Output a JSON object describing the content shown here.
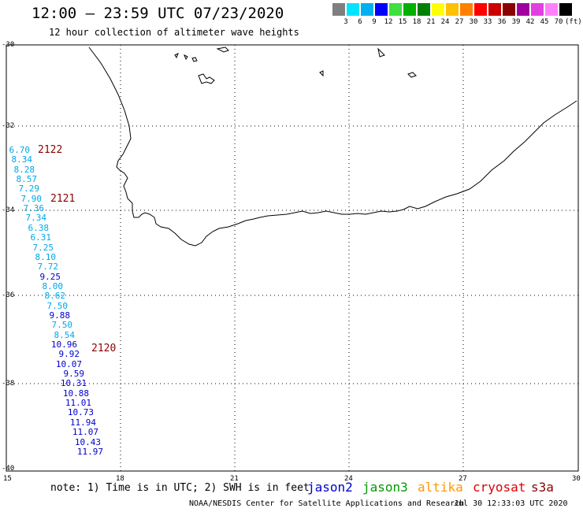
{
  "header": {
    "title": "12:00 – 23:59 UTC 07/23/2020",
    "subtitle": "12 hour collection of altimeter wave heights"
  },
  "legend": {
    "colors": [
      "#7f7f7f",
      "#00e5ff",
      "#00b0f0",
      "#0000ff",
      "#3fdf3f",
      "#00b000",
      "#008000",
      "#ffff00",
      "#ffc000",
      "#ff8000",
      "#ff0000",
      "#cc0000",
      "#8b0000",
      "#a000a0",
      "#e040e0",
      "#ff80ff",
      "#000000"
    ],
    "labels": [
      "3",
      "6",
      "9",
      "12",
      "15",
      "18",
      "21",
      "24",
      "27",
      "30",
      "33",
      "36",
      "39",
      "42",
      "45",
      "70",
      "(ft)"
    ]
  },
  "axes": {
    "lat_labels": [
      "-30",
      "-32",
      "-34",
      "-36",
      "-38",
      "-40"
    ],
    "lon_labels": [
      "15",
      "18",
      "21",
      "24",
      "27",
      "30"
    ]
  },
  "chart_data": {
    "type": "scatter",
    "xlim": [
      15,
      30
    ],
    "ylim": [
      -40,
      -30
    ],
    "grid": true,
    "wave_heights_ft": [
      "6.70",
      "8.34",
      "8.28",
      "8.57",
      "7.29",
      "7.90",
      "7.36",
      "7.34",
      "6.38",
      "6.31",
      "7.25",
      "8.10",
      "7.72",
      "9.25",
      "8.00",
      "8.62",
      "7.50",
      "9.88",
      "7.50",
      "8.54",
      "10.96",
      "9.92",
      "10.07",
      "9.59",
      "10.31",
      "10.88",
      "11.01",
      "10.73",
      "11.94",
      "11.07",
      "10.43",
      "11.97"
    ],
    "time_labels": [
      "2122",
      "2121",
      "2120"
    ]
  },
  "footer": {
    "note": "note: 1) Time is in UTC; 2) SWH is in feet",
    "satellites": [
      {
        "name": "jason2",
        "color": "#0000cc"
      },
      {
        "name": "jason3",
        "color": "#009900"
      },
      {
        "name": "altika",
        "color": "#ff9900"
      },
      {
        "name": "cryosat",
        "color": "#dd0000"
      },
      {
        "name": "s3a",
        "color": "#8b0000"
      }
    ],
    "credit": "NOAA/NESDIS Center for Satellite Applications and Research",
    "timestamp": "Jul 30 12:33:03 UTC 2020"
  }
}
